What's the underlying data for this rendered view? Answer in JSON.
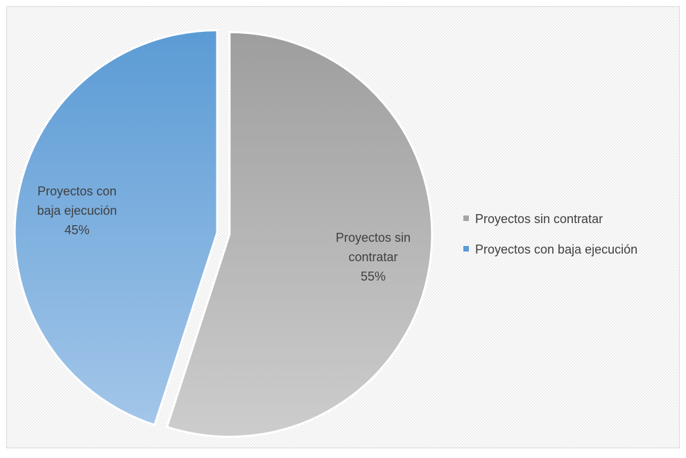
{
  "chart_data": {
    "type": "pie",
    "slices": [
      {
        "name": "Proyectos sin contratar",
        "value": 55,
        "label_lines": [
          "Proyectos sin",
          "contratar",
          "55%"
        ],
        "color_top": "#9e9e9e",
        "color_bottom": "#cdcdcd",
        "legend_color": "#a5a5a5"
      },
      {
        "name": "Proyectos con baja ejecución",
        "value": 45,
        "label_lines": [
          "Proyectos con",
          "baja ejecución",
          "45%"
        ],
        "color_top": "#5b9bd5",
        "color_bottom": "#a3c6e9",
        "legend_color": "#5b9bd5"
      }
    ],
    "legend_position": "right",
    "exploded": true,
    "background_pattern": "diagonal-hatch",
    "border_color": "#d9d9d9",
    "text_color": "#404040"
  }
}
